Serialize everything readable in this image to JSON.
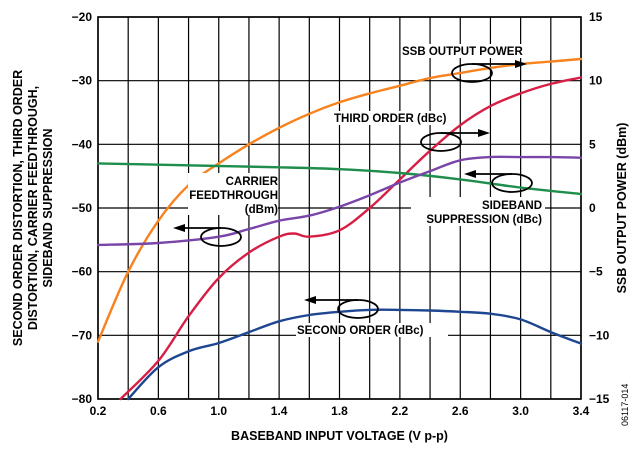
{
  "chart_data": {
    "type": "line",
    "xlabel": "BASEBAND INPUT VOLTAGE (V p-p)",
    "ylabel_left": [
      "SECOND ORDER DISTORTION, THIRD ORDER",
      "DISTORTION, CARRIER FEEDTHROUGH,",
      "SIDEBAND SUPPRESSION"
    ],
    "ylabel_right": "SSB OUTPUT POWER (dBm)",
    "figure_id": "06117-014",
    "xlim": [
      0.2,
      3.4
    ],
    "ylim_left": [
      -80,
      -20
    ],
    "ylim_right": [
      -15,
      15
    ],
    "grid": true,
    "x_ticks": [
      "0.2",
      "0.6",
      "1.0",
      "1.4",
      "1.8",
      "2.2",
      "2.6",
      "3.0",
      "3.4"
    ],
    "y_ticks_left": [
      "−20",
      "−30",
      "−40",
      "−50",
      "−60",
      "−70",
      "−80"
    ],
    "y_ticks_right": [
      "15",
      "10",
      "5",
      "0",
      "−5",
      "−10",
      "−15"
    ],
    "series": [
      {
        "name": "SSB OUTPUT POWER",
        "axis": "right",
        "color": "#f7821e",
        "x": [
          0.2,
          0.4,
          0.6,
          0.8,
          1.0,
          1.2,
          1.4,
          1.6,
          1.8,
          2.0,
          2.2,
          2.4,
          2.6,
          2.8,
          3.0,
          3.2,
          3.4
        ],
        "y": [
          -10.5,
          -5.0,
          -1.0,
          1.8,
          3.5,
          5.0,
          6.3,
          7.4,
          8.3,
          9.0,
          9.6,
          10.2,
          10.6,
          11.0,
          11.3,
          11.5,
          11.7
        ]
      },
      {
        "name": "THIRD ORDER (dBc)",
        "axis": "left",
        "color": "#d71f45",
        "x": [
          0.35,
          0.6,
          0.8,
          1.0,
          1.2,
          1.4,
          1.5,
          1.6,
          1.8,
          2.0,
          2.2,
          2.4,
          2.6,
          2.8,
          3.0,
          3.2,
          3.4
        ],
        "y": [
          -80,
          -74,
          -67,
          -61,
          -57,
          -54.5,
          -54,
          -54.5,
          -53.5,
          -50,
          -45.5,
          -41,
          -37,
          -34,
          -32,
          -30.5,
          -29.5
        ]
      },
      {
        "name": "CARRIER FEEDTHROUGH (dBm)",
        "axis": "left",
        "color": "#1f8e4c",
        "x": [
          0.2,
          0.6,
          1.0,
          1.4,
          1.8,
          2.2,
          2.6,
          3.0,
          3.4
        ],
        "y": [
          -43,
          -43.2,
          -43.4,
          -43.6,
          -43.9,
          -44.5,
          -45.5,
          -46.8,
          -47.8
        ]
      },
      {
        "name": "SIDEBAND SUPPRESSION (dBc)",
        "axis": "left",
        "color": "#7a45a8",
        "x": [
          0.2,
          0.6,
          1.0,
          1.2,
          1.4,
          1.6,
          1.8,
          2.0,
          2.2,
          2.4,
          2.6,
          2.8,
          3.0,
          3.2,
          3.4
        ],
        "y": [
          -55.8,
          -55.5,
          -54.5,
          -53.3,
          -52.0,
          -51.2,
          -49.8,
          -48.0,
          -46.0,
          -44.2,
          -42.5,
          -42.0,
          -42.0,
          -42.0,
          -42.1
        ]
      },
      {
        "name": "SECOND ORDER (dBc)",
        "axis": "left",
        "color": "#1f4690",
        "x": [
          0.4,
          0.6,
          0.8,
          1.0,
          1.2,
          1.4,
          1.6,
          1.8,
          2.0,
          2.2,
          2.4,
          2.6,
          2.8,
          3.0,
          3.2,
          3.4
        ],
        "y": [
          -80,
          -75,
          -72.5,
          -71.2,
          -69.5,
          -67.8,
          -66.8,
          -66.3,
          -66.0,
          -66.0,
          -66.1,
          -66.3,
          -66.6,
          -67.5,
          -69.5,
          -71.3
        ]
      }
    ],
    "annotations": {
      "ssb": "SSB OUTPUT POWER",
      "third": "THIRD ORDER (dBc)",
      "carrier_1": "CARRIER",
      "carrier_2": "FEEDTHROUGH",
      "carrier_3": "(dBm)",
      "sideband_1": "SIDEBAND",
      "sideband_2": "SUPPRESSION (dBc)",
      "second": "SECOND ORDER (dBc)"
    }
  }
}
